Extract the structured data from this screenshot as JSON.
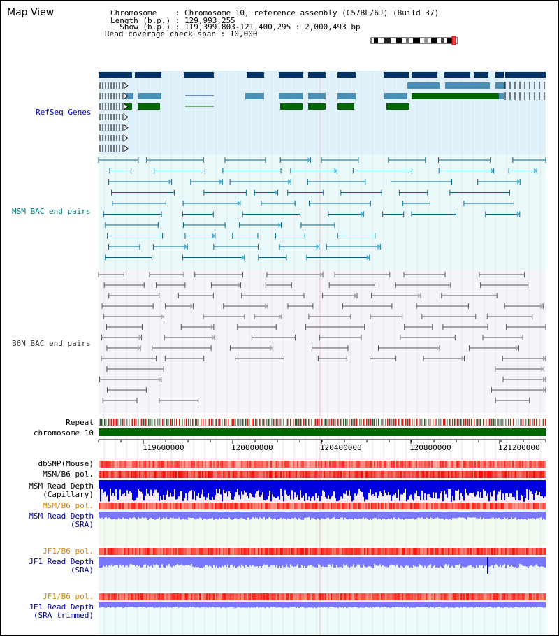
{
  "title": "Map View",
  "header": {
    "chromosome_line": "Chromosome    : Chromosome 10, reference assembly (C57BL/6J) (Build 37)",
    "length_line": "Length (b.p.) : 129,993,255",
    "show_line": "  Show (b.p.) : 119,399,803-121,400,295 : 2,000,493 bp",
    "coverage_line": "Read coverage check span : 10,000"
  },
  "tracks": {
    "refseq": "RefSeq Genes",
    "msm_bac": "MSM BAC end pairs",
    "b6n_bac": "B6N BAC end pairs",
    "repeat": "Repeat",
    "chromosome": "chromosome 10",
    "dbsnp": "dbSNP(Mouse)",
    "msm_b6_pol_1": "MSM/B6 pol.",
    "msm_read_depth_cap_1": "MSM Read Depth",
    "msm_read_depth_cap_2": "(Capillary)",
    "msm_b6_pol_2": "MSM/B6 pol.",
    "msm_read_depth_sra_1": "MSM Read Depth",
    "msm_read_depth_sra_2": "(SRA)",
    "jf1_b6_pol_1": "JF1/B6 pol.",
    "jf1_read_depth_sra_1": "JF1 Read Depth",
    "jf1_read_depth_sra_2": "(SRA)",
    "jf1_b6_pol_2": "JF1/B6 pol.",
    "jf1_read_depth_trim_1": "JF1 Read Depth",
    "jf1_read_depth_trim_2": "(SRA trimmed)"
  },
  "axis": {
    "ticks": [
      "119600000",
      "120000000",
      "120400000",
      "120800000",
      "121200000"
    ]
  },
  "colors": {
    "refseq_label": "#0000bb",
    "msm_label": "#007777",
    "b6n_label": "#333333",
    "orange_label": "#dd8800",
    "blue_label": "#000099",
    "refseq_bg": "#dff2fb",
    "msm_bg": "#eafafa",
    "b6n_bg": "#f4f4fa",
    "gene_dark": "#003366",
    "gene_mid": "#4a8fb5",
    "gene_green": "#006600",
    "depth_dark": "#0000dd",
    "depth_light": "#7777ff"
  }
}
